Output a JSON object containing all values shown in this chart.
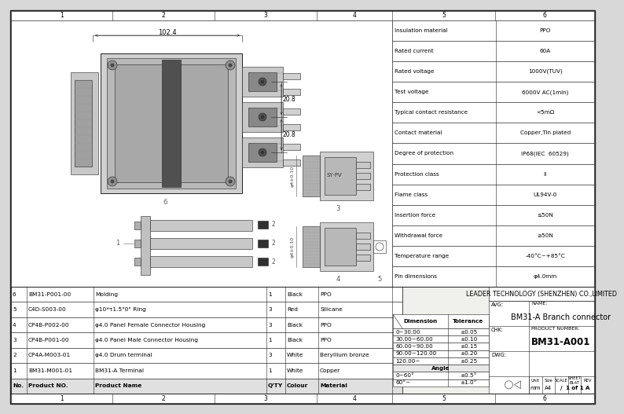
{
  "bg_color": "#e8e8e8",
  "line_color": "#222222",
  "title": "BM31-A Branch connector",
  "product_number": "BM31-A001",
  "company": "LEADER TECHNOLOGY (SHENZHEN) CO.,LIMITED",
  "spec_rows": [
    [
      "Insulation material",
      "PPO"
    ],
    [
      "Rated current",
      "60A"
    ],
    [
      "Rated voltage",
      "1000V(TUV)"
    ],
    [
      "Test voltage",
      "6000V AC(1min)"
    ],
    [
      "Typical contact resistance",
      "<5mΩ"
    ],
    [
      "Contact material",
      "Copper,Tin plated"
    ],
    [
      "Degree of protection",
      "IP68(IEC  60529)"
    ],
    [
      "Protection class",
      "II"
    ],
    [
      "Flame class",
      "UL94V-0"
    ],
    [
      "Insertion force",
      "≤50N"
    ],
    [
      "Withdrawal force",
      "≥50N"
    ],
    [
      "Temperature range",
      "-40°C~+85°C"
    ],
    [
      "Pin dimensions",
      "φ4.0mm"
    ]
  ],
  "bom_rows": [
    [
      "6",
      "BM31-P001-00",
      "Molding",
      "1",
      "Black",
      "PPO"
    ],
    [
      "5",
      "C4D-S003-00",
      "φ10*τ1.5\"0\" Ring",
      "3",
      "Red",
      "Silicane"
    ],
    [
      "4",
      "CP4B-P002-00",
      "φ4.0 Panel Female Connector Housing",
      "3",
      "Black",
      "PPO"
    ],
    [
      "3",
      "CP4B-P001-00",
      "φ4.0 Panel Male Connector Housing",
      "1",
      "Black",
      "PPO"
    ],
    [
      "2",
      "CP4A-M003-01",
      "φ4.0 Drum terminal",
      "3",
      "White",
      "Beryllium bronze"
    ],
    [
      "1",
      "BM31-M001-01",
      "BM31-A Terminal",
      "1",
      "White",
      "Copper"
    ],
    [
      "No.",
      "Product NO.",
      "Product Name",
      "Q'TY",
      "Colour",
      "Material"
    ]
  ],
  "bom_col_widths": [
    20,
    85,
    220,
    24,
    42,
    107
  ],
  "tolerance_rows": [
    [
      "0~30.00",
      "±0.05"
    ],
    [
      "30.00~60.00",
      "±0.10"
    ],
    [
      "60.00~90.00",
      "±0.15"
    ],
    [
      "90.00~120.00",
      "±0.20"
    ],
    [
      "120.00~",
      "±0.25"
    ],
    [
      "Angle",
      ""
    ],
    [
      "0~60°",
      "±0.5°"
    ],
    [
      "60°~",
      "±1.0°"
    ]
  ],
  "dim_102_4": "102.4",
  "dim_20_8a": "20.8",
  "dim_20_8b": "20.8",
  "scale": "1 of 1",
  "unit": "mm",
  "size": "A4",
  "scale_val": "/",
  "rev": "A"
}
